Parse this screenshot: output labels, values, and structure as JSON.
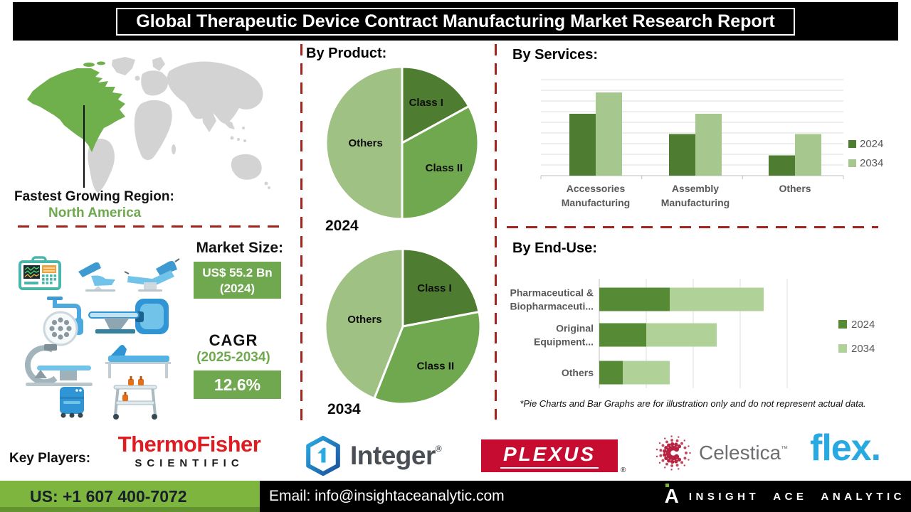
{
  "title": "Global Therapeutic Device Contract Manufacturing Market Research Report",
  "sections": {
    "product": "By Product:",
    "services": "By Services:",
    "end_use": "By End-Use:"
  },
  "region": {
    "label": "Fastest Growing Region:",
    "value": "North America"
  },
  "market": {
    "size_label": "Market Size:",
    "size_value": "US$ 55.2 Bn",
    "size_year": "(2024)",
    "cagr_label": "CAGR",
    "cagr_period": "(2025-2034)",
    "cagr_value": "12.6%"
  },
  "footnote": "*Pie Charts and Bar Graphs are for illustration only and do not represent actual data.",
  "key_players": {
    "label": "Key Players:",
    "thermo_line1": "ThermoFisher",
    "thermo_line2": "SCIENTIFIC",
    "integer": "Integer",
    "integer_reg": "®",
    "plexus": "PLEXUS",
    "plexus_reg": "®",
    "celestica": "Celestica",
    "celestica_tm": "™",
    "flex": "flex."
  },
  "footer": {
    "phone": "US: +1 607 400-7072",
    "email": "Email: info@insightaceanalytic.com",
    "brand_mark": "A",
    "brand": "INSIGHT ACE ANALYTIC"
  },
  "colors": {
    "dark_green": "#4e7d31",
    "light_green": "#a6c88e",
    "dark_green2": "#568a35",
    "light_green2": "#b0d198",
    "accent_green": "#6fa84e",
    "dashed_red": "#a3241c",
    "footer_green": "#7db53f",
    "map_green": "#6fb04c",
    "map_gray": "#d3d3d3",
    "thermo_red": "#e11b22",
    "plexus_red": "#c60c30",
    "integer_blue": "#1b75bb",
    "flex_blue": "#29a9e1",
    "celestica_red": "#b72441",
    "celestica_gray": "#6d6e71",
    "axis_gray": "#595959"
  },
  "chart_data": [
    {
      "type": "pie",
      "year_label": "2024",
      "section": "By Product:",
      "labels": [
        "Class I",
        "Class II",
        "Others"
      ],
      "values": [
        17,
        33,
        50
      ],
      "colors": [
        "#4e7d31",
        "#6fa84e",
        "#9fc183"
      ],
      "label_r": [
        0.62,
        0.64,
        0.48
      ],
      "note": "illustrative segmentation, values estimated from slice angles"
    },
    {
      "type": "pie",
      "year_label": "2034",
      "section": "By Product:",
      "labels": [
        "Class I",
        "Class II",
        "Others"
      ],
      "values": [
        22,
        34,
        44
      ],
      "colors": [
        "#4e7d31",
        "#6fa84e",
        "#9fc183"
      ],
      "label_r": [
        0.64,
        0.66,
        0.5
      ],
      "note": "illustrative segmentation, values estimated from slice angles"
    },
    {
      "type": "bar",
      "section": "By Services:",
      "categories": [
        [
          "Accessories",
          "Manufacturing"
        ],
        [
          "Assembly",
          "Manufacturing"
        ],
        [
          "Others"
        ]
      ],
      "series": [
        {
          "name": "2024",
          "values": [
            5.8,
            3.9,
            1.9
          ]
        },
        {
          "name": "2034",
          "values": [
            7.8,
            5.8,
            3.9
          ]
        }
      ],
      "ylim": [
        0,
        9
      ],
      "grid": true,
      "legend_position": "right",
      "note": "no numeric axis labels shown; values estimated from gridlines"
    },
    {
      "type": "bar-horizontal-stacked",
      "section": "By End-Use:",
      "categories": [
        [
          "Pharmaceutical &",
          "Biopharmaceuti..."
        ],
        [
          "Original",
          "Equipment..."
        ],
        [
          "Others"
        ]
      ],
      "series": [
        {
          "name": "2024",
          "values": [
            1.5,
            1.0,
            0.5
          ]
        },
        {
          "name": "2034",
          "values": [
            2.0,
            1.5,
            1.0
          ]
        }
      ],
      "xlim": [
        0,
        4
      ],
      "grid": true,
      "legend_position": "right",
      "note": "no numeric axis labels shown; values estimated from gridlines"
    }
  ]
}
